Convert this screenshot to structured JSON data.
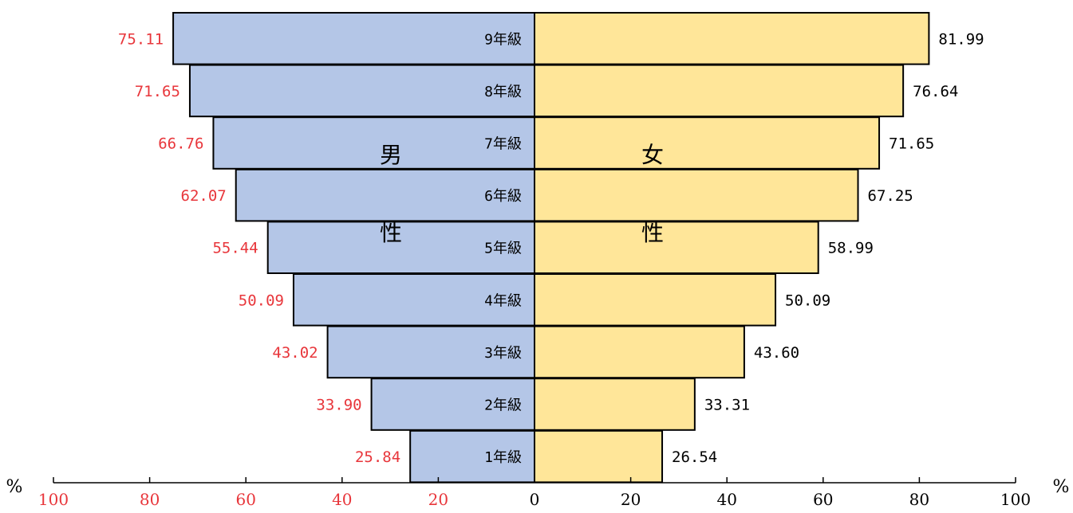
{
  "chart_data": {
    "type": "bar",
    "orientation": "horizontal-diverging",
    "categories": [
      "1年級",
      "2年級",
      "3年級",
      "4年級",
      "5年級",
      "6年級",
      "7年級",
      "8年級",
      "9年級"
    ],
    "series": [
      {
        "name": "男性",
        "side": "left",
        "values": [
          25.84,
          33.9,
          43.02,
          50.09,
          55.44,
          62.07,
          66.76,
          71.65,
          75.11
        ],
        "label_strings": [
          "25.84",
          "33.90",
          "43.02",
          "50.09",
          "55.44",
          "62.07",
          "66.76",
          "71.65",
          "75.11"
        ]
      },
      {
        "name": "女性",
        "side": "right",
        "values": [
          26.54,
          33.31,
          43.6,
          50.09,
          58.99,
          67.25,
          71.65,
          76.64,
          81.99
        ],
        "label_strings": [
          "26.54",
          "33.31",
          "43.60",
          "50.09",
          "58.99",
          "67.25",
          "71.65",
          "76.64",
          "81.99"
        ]
      }
    ],
    "xlim": [
      0,
      100
    ],
    "x_ticks_left": [
      "100",
      "80",
      "60",
      "40",
      "20"
    ],
    "x_ticks_right": [
      "0",
      "20",
      "40",
      "60",
      "80",
      "100"
    ],
    "unit_left": "%",
    "unit_right": "%",
    "side_labels": {
      "male": {
        "line1": "男",
        "line2": "性"
      },
      "female": {
        "line1": "女",
        "line2": "性"
      }
    },
    "colors": {
      "male_fill": "#b4c6e7",
      "female_fill": "#ffe699",
      "male_label": "#e8363b",
      "female_label": "#000000",
      "male_tick": "#e8363b",
      "female_tick": "#000000",
      "bar_stroke": "#000000"
    }
  }
}
